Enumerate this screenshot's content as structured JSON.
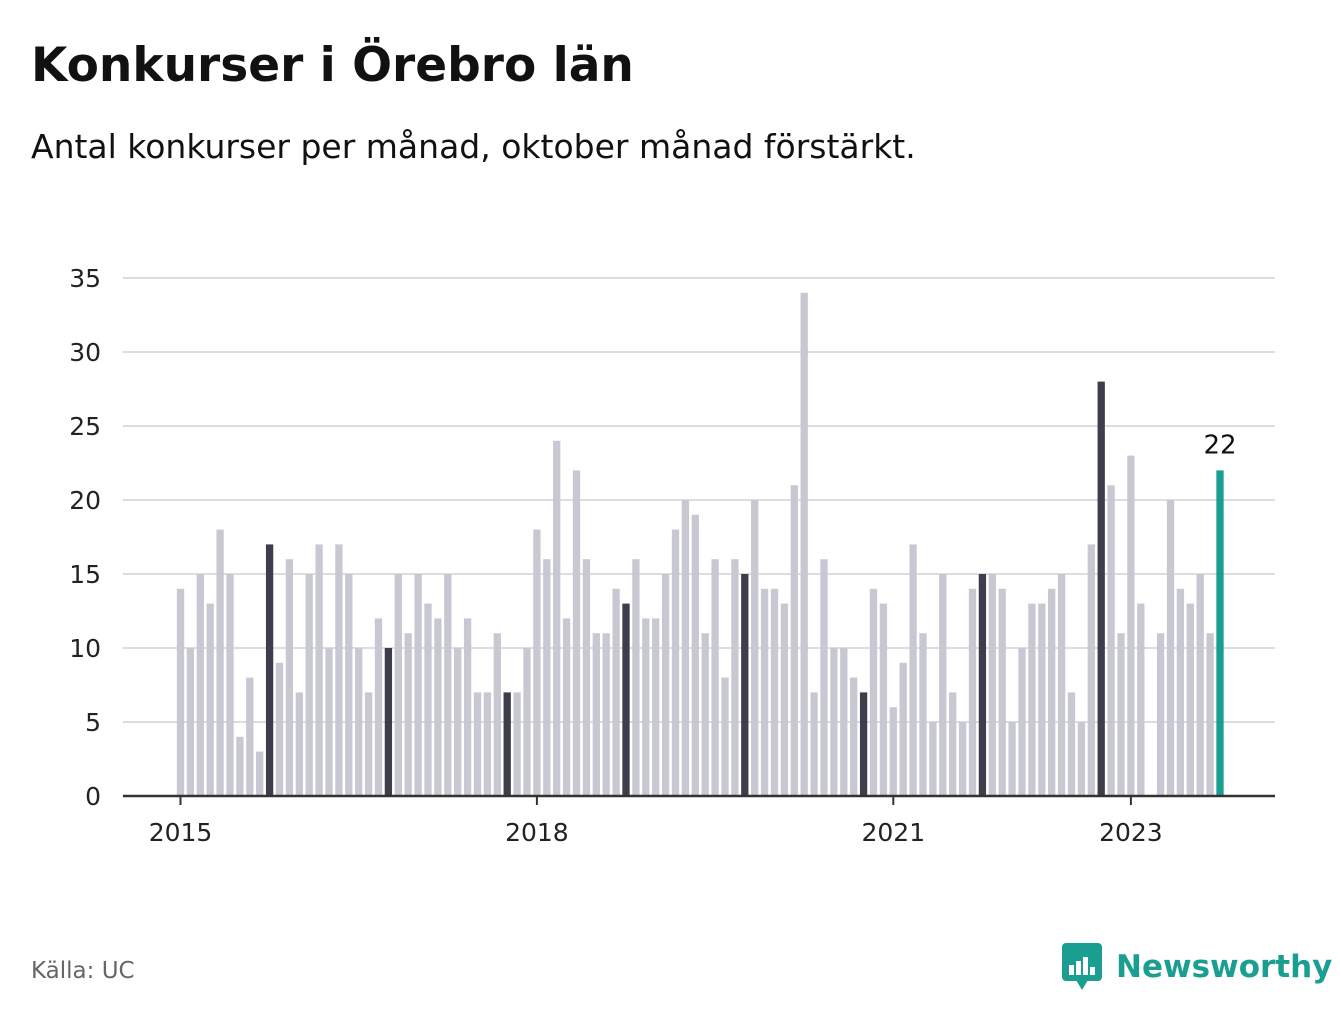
{
  "title": "Konkurser i Örebro län",
  "subtitle": "Antal konkurser per månad, oktober månad förstärkt.",
  "source": "Källa: UC",
  "brand": {
    "name": "Newsworthy",
    "icon": "newsworthy-logo-icon"
  },
  "colors": {
    "bar": "#c8c8d2",
    "highlight": "#3e3d4b",
    "latest": "#1a9e91",
    "grid": "#dcdce1",
    "axis": "#333333",
    "brand": "#1a9e91"
  },
  "chart_data": {
    "type": "bar",
    "title": "Konkurser i Örebro län",
    "subtitle": "Antal konkurser per månad, oktober månad förstärkt.",
    "ylim": [
      0,
      35
    ],
    "yticks": [
      0,
      5,
      10,
      15,
      20,
      25,
      30,
      35
    ],
    "grid": true,
    "legend": "none",
    "x_ticks": [
      {
        "label": "2015",
        "at": "2015-01"
      },
      {
        "label": "2018",
        "at": "2018-01"
      },
      {
        "label": "2021",
        "at": "2021-01"
      },
      {
        "label": "2023",
        "at": "2023-01"
      }
    ],
    "period_start": "2015-01",
    "values": [
      14,
      10,
      15,
      13,
      18,
      15,
      4,
      8,
      3,
      17,
      9,
      16,
      7,
      15,
      17,
      10,
      17,
      15,
      10,
      7,
      12,
      10,
      15,
      11,
      15,
      13,
      12,
      15,
      10,
      12,
      7,
      7,
      11,
      7,
      7,
      10,
      18,
      16,
      24,
      12,
      22,
      16,
      11,
      11,
      14,
      13,
      16,
      12,
      12,
      15,
      18,
      20,
      19,
      11,
      16,
      8,
      16,
      15,
      20,
      14,
      14,
      13,
      21,
      34,
      7,
      16,
      10,
      10,
      8,
      7,
      14,
      13,
      6,
      9,
      17,
      11,
      5,
      15,
      7,
      5,
      14,
      15,
      15,
      14,
      5,
      10,
      13,
      13,
      14,
      15,
      7,
      5,
      17,
      28,
      21,
      11,
      23,
      13,
      0,
      11,
      20,
      14,
      13,
      15,
      11,
      22
    ],
    "highlighted_month": "October",
    "data_labels": [
      {
        "month": "2023-10",
        "value": 22,
        "text": "22"
      }
    ]
  }
}
